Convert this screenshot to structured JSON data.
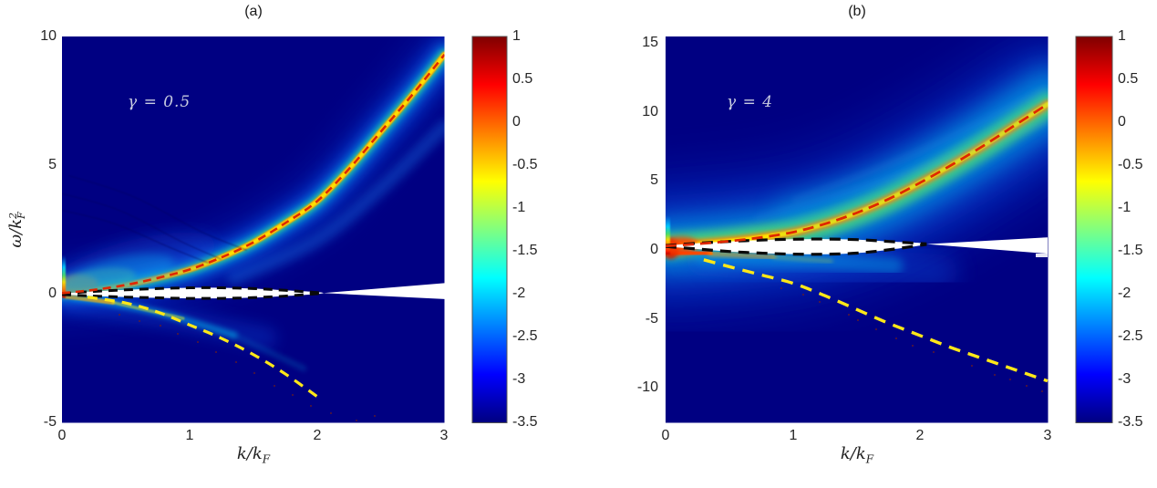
{
  "figure": {
    "panel_a_title": "(a)",
    "panel_b_title": "(b)"
  },
  "chart_data": {
    "type": "heatmap",
    "colormap": "jet",
    "colorbar": {
      "min": -3.5,
      "max": 1,
      "tick_labels": [
        "1",
        "0.5",
        "0",
        "-0.5",
        "-1",
        "-1.5",
        "-2",
        "-2.5",
        "-3",
        "-3.5"
      ]
    },
    "panels": [
      {
        "label": "(a)",
        "annotation": "γ = 0.5",
        "xlabel": {
          "main": "k/k",
          "sub": "F"
        },
        "ylabel": {
          "main": "ω/k",
          "sup": "2",
          "sub": "F"
        },
        "xlim": [
          0,
          3
        ],
        "ylim": [
          -5,
          10
        ],
        "xticks": [
          0,
          1,
          2,
          3
        ],
        "yticks": [
          10,
          5,
          0,
          -5
        ],
        "xtick_labels": [
          "0",
          "1",
          "2",
          "3"
        ],
        "ytick_labels": [
          "10",
          "5",
          "0",
          "-5"
        ],
        "dispersion_curve_red_dashed": {
          "k": [
            0,
            0.25,
            0.5,
            0.75,
            1,
            1.25,
            1.5,
            1.75,
            2,
            2.25,
            2.5,
            2.75,
            3
          ],
          "omega": [
            0.03,
            0.16,
            0.35,
            0.62,
            0.95,
            1.42,
            2.0,
            2.75,
            3.6,
            4.85,
            6.3,
            7.75,
            9.3
          ]
        },
        "lower_branch_yellow_dashed": {
          "k": [
            0.2,
            0.5,
            0.75,
            1,
            1.25,
            1.5,
            1.75,
            2.02
          ],
          "omega": [
            -0.12,
            -0.35,
            -0.7,
            -1.2,
            -1.72,
            -2.35,
            -3.1,
            -4.05
          ]
        },
        "masked_lens_black_dashed": {
          "k": [
            0,
            0.25,
            0.5,
            0.75,
            1,
            1.25,
            1.5,
            1.75,
            2.05
          ],
          "omega_upper": [
            0.02,
            0.1,
            0.16,
            0.21,
            0.24,
            0.24,
            0.21,
            0.14,
            0.04
          ],
          "omega_lower": [
            -0.02,
            -0.08,
            -0.12,
            -0.15,
            -0.17,
            -0.17,
            -0.14,
            -0.08,
            0.03
          ]
        },
        "masked_wedge": {
          "k": [
            2.05,
            3,
            3
          ],
          "omega": [
            0.035,
            0.42,
            -0.2
          ]
        }
      },
      {
        "label": "(b)",
        "annotation": "γ = 4",
        "xlabel": {
          "main": "k/k",
          "sub": "F"
        },
        "xlim": [
          0,
          3
        ],
        "ylim": [
          -12.5,
          15.5
        ],
        "xticks": [
          0,
          1,
          2,
          3
        ],
        "yticks": [
          15,
          10,
          5,
          0,
          -5,
          -10
        ],
        "xtick_labels": [
          "0",
          "1",
          "2",
          "3"
        ],
        "ytick_labels": [
          "15",
          "10",
          "5",
          "0",
          "-5",
          "-10"
        ],
        "dispersion_curve_red_dashed": {
          "k": [
            0,
            0.25,
            0.5,
            0.75,
            1,
            1.25,
            1.5,
            1.75,
            2,
            2.25,
            2.5,
            2.75,
            3
          ],
          "omega": [
            0.3,
            0.45,
            0.65,
            0.92,
            1.3,
            1.9,
            2.7,
            3.7,
            4.9,
            6.2,
            7.6,
            9.1,
            10.6
          ]
        },
        "lower_branch_yellow_dashed": {
          "k": [
            0.3,
            0.5,
            0.75,
            1,
            1.25,
            1.5,
            1.75,
            2,
            2.25,
            2.5,
            2.75,
            3
          ],
          "omega": [
            -0.7,
            -1.2,
            -1.8,
            -2.4,
            -3.3,
            -4.3,
            -5.3,
            -6.2,
            -7.1,
            -7.9,
            -8.7,
            -9.5
          ]
        },
        "masked_lens_black_dashed": {
          "k": [
            0,
            0.25,
            0.5,
            0.75,
            1,
            1.25,
            1.5,
            1.75,
            2.05
          ],
          "omega_upper": [
            0.33,
            0.5,
            0.63,
            0.73,
            0.79,
            0.8,
            0.76,
            0.63,
            0.45
          ],
          "omega_lower": [
            0.27,
            0.08,
            -0.1,
            -0.22,
            -0.29,
            -0.3,
            -0.22,
            0.02,
            0.42
          ]
        },
        "masked_wedge": {
          "k": [
            2.05,
            3,
            3
          ],
          "omega": [
            0.44,
            0.93,
            -0.26
          ]
        }
      }
    ]
  },
  "colors": {
    "background_navy": "#000082",
    "dispersion_dashed_red": "#e02800",
    "lower_branch_dashed_yellow": "#ffe818",
    "lens_boundary_dashed_black": "#0a0a0a",
    "masked_region_white": "#ffffff",
    "annotation_text": "#c7cbe0",
    "axis_text": "#262626",
    "jet_min": "#000080",
    "jet_max": "#7f0000"
  }
}
